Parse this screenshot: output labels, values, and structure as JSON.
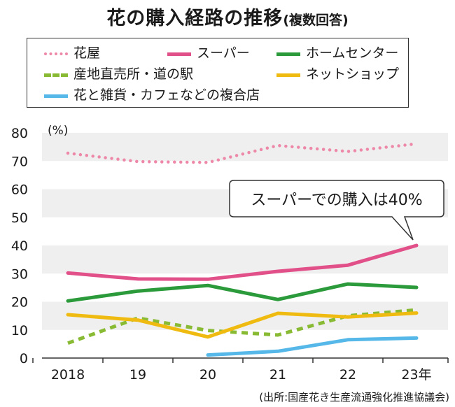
{
  "title": "花の購入経路の推移",
  "subtitle": "(複数回答)",
  "source": "(出所:国産花き生産流通強化推進協議会)",
  "annotation": "スーパーでの購入は40%",
  "colors": {
    "hanaya": "#ee88a8",
    "super": "#e2508a",
    "homecenter": "#2a9a3a",
    "sanchi": "#88bb33",
    "net": "#f0bb10",
    "cafe": "#55b8e8",
    "band": "#efefef"
  },
  "chart_data": {
    "type": "line",
    "categories": [
      "2018",
      "19",
      "20",
      "21",
      "22",
      "23年"
    ],
    "ylabel": "(%)",
    "ylim": [
      0,
      80
    ],
    "yticks": [
      "0",
      "10",
      "20",
      "30",
      "40",
      "50",
      "60",
      "70",
      "80"
    ],
    "grid": "alternating-bands",
    "legend_position": "top",
    "series": [
      {
        "name": "花屋",
        "style": "dotted",
        "values": [
          72.8,
          69.8,
          69.5,
          75.5,
          73.4,
          76.1
        ]
      },
      {
        "name": "スーパー",
        "style": "solid",
        "values": [
          30.2,
          28.1,
          28.0,
          30.8,
          33.0,
          40.0
        ]
      },
      {
        "name": "ホームセンター",
        "style": "solid",
        "values": [
          20.3,
          23.8,
          25.8,
          20.8,
          26.3,
          25.1
        ]
      },
      {
        "name": "産地直売所・道の駅",
        "style": "dashed",
        "values": [
          5.3,
          14.2,
          9.8,
          8.2,
          15.0,
          17.1
        ]
      },
      {
        "name": "ネットショップ",
        "style": "solid",
        "values": [
          15.4,
          13.5,
          7.5,
          15.9,
          14.6,
          16.0
        ]
      },
      {
        "name": "花と雑貨・カフェなどの複合店",
        "style": "solid",
        "values": [
          null,
          null,
          1.1,
          2.4,
          6.5,
          7.1
        ]
      }
    ]
  }
}
